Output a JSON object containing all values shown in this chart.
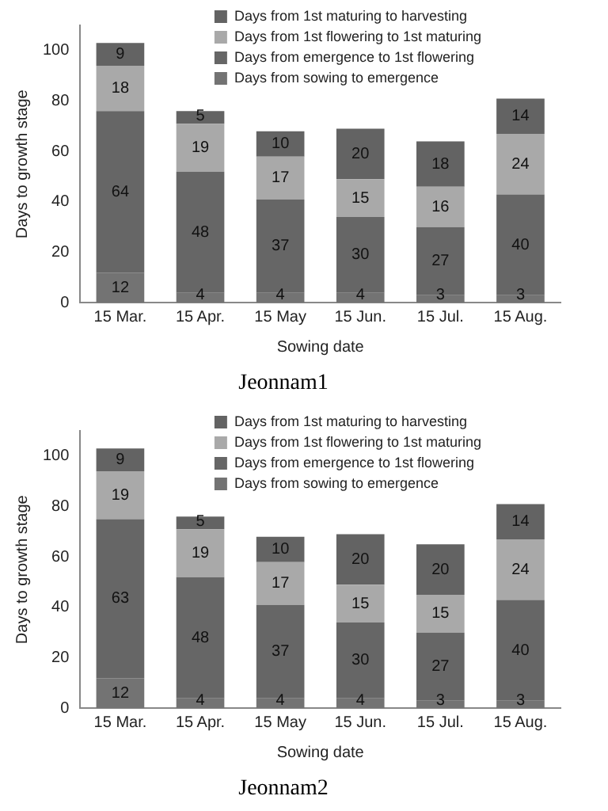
{
  "chart_data": [
    {
      "type": "bar",
      "title": "Jeonnam1",
      "xlabel": "Sowing date",
      "ylabel": "Days to growth stage",
      "categories": [
        "15 Mar.",
        "15 Apr.",
        "15 May",
        "15 Jun.",
        "15 Jul.",
        "15 Aug."
      ],
      "stacked": true,
      "ylim": [
        0,
        110
      ],
      "yticks": [
        0,
        20,
        40,
        60,
        80,
        100
      ],
      "legend": "top right",
      "data_labels": true,
      "series": [
        {
          "name": "Days from sowing to emergence",
          "color": "#737373",
          "values": [
            12,
            4,
            4,
            4,
            3,
            3
          ]
        },
        {
          "name": "Days from emergence to 1st flowering",
          "color": "#666666",
          "values": [
            64,
            48,
            37,
            30,
            27,
            40
          ]
        },
        {
          "name": "Days from 1st flowering to 1st maturing",
          "color": "#a9a9a9",
          "values": [
            18,
            19,
            17,
            15,
            16,
            24
          ]
        },
        {
          "name": "Days from 1st maturing to harvesting",
          "color": "#636363",
          "values": [
            9,
            5,
            10,
            20,
            18,
            14
          ]
        }
      ]
    },
    {
      "type": "bar",
      "title": "Jeonnam2",
      "xlabel": "Sowing date",
      "ylabel": "Days to growth stage",
      "categories": [
        "15 Mar.",
        "15 Apr.",
        "15 May",
        "15 Jun.",
        "15 Jul.",
        "15 Aug."
      ],
      "stacked": true,
      "ylim": [
        0,
        110
      ],
      "yticks": [
        0,
        20,
        40,
        60,
        80,
        100
      ],
      "legend": "top right",
      "data_labels": true,
      "series": [
        {
          "name": "Days from sowing to emergence",
          "color": "#737373",
          "values": [
            12,
            4,
            4,
            4,
            3,
            3
          ]
        },
        {
          "name": "Days from emergence to 1st flowering",
          "color": "#666666",
          "values": [
            63,
            48,
            37,
            30,
            27,
            40
          ]
        },
        {
          "name": "Days from 1st flowering to 1st maturing",
          "color": "#a9a9a9",
          "values": [
            19,
            19,
            17,
            15,
            15,
            24
          ]
        },
        {
          "name": "Days from 1st maturing to harvesting",
          "color": "#636363",
          "values": [
            9,
            5,
            10,
            20,
            20,
            14
          ]
        }
      ]
    }
  ]
}
